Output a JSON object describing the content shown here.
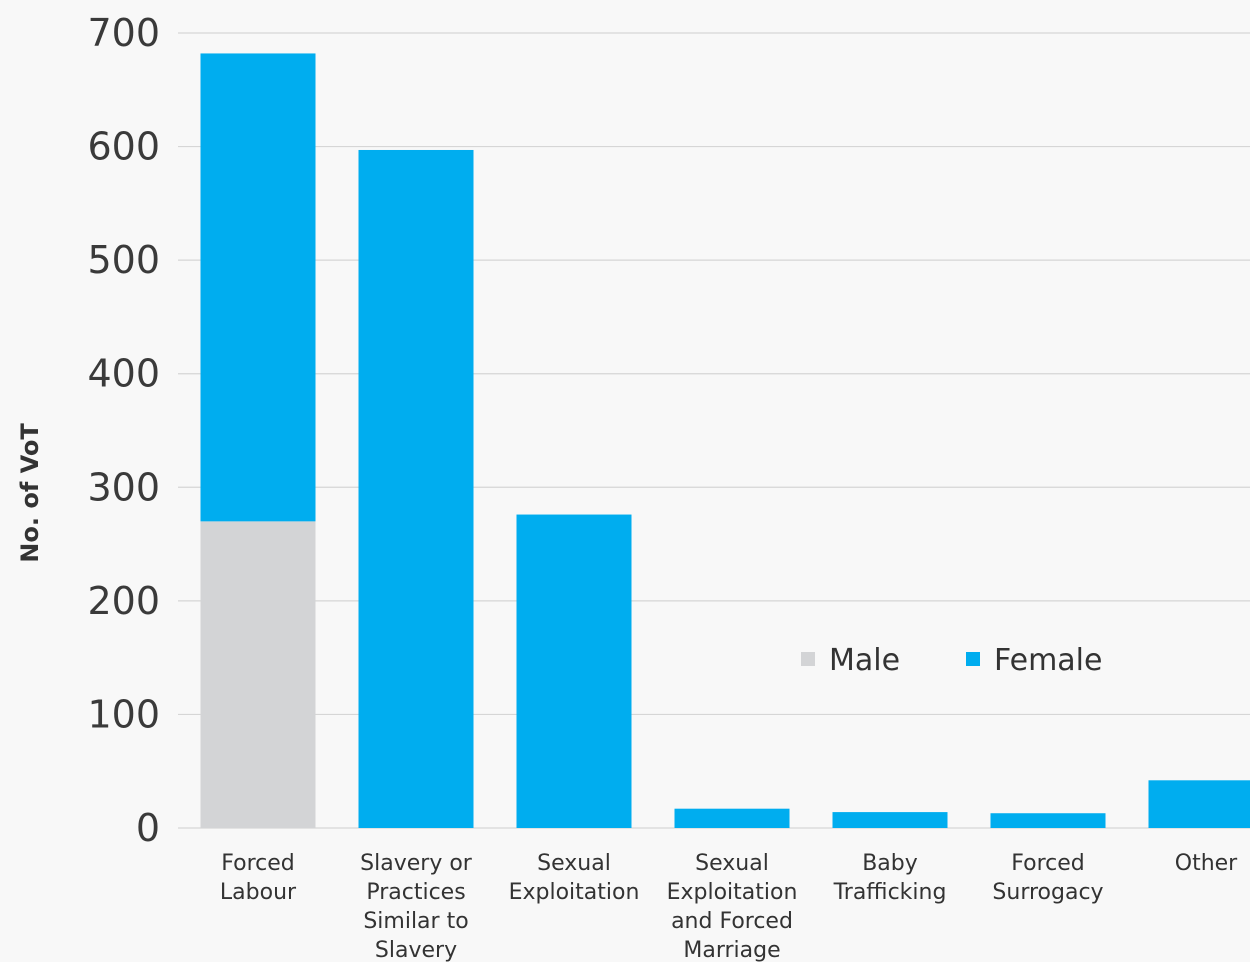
{
  "chart_data": {
    "type": "bar",
    "stacked": true,
    "title": "",
    "xlabel": "",
    "ylabel": "No. of VoT",
    "ylim": [
      0,
      700
    ],
    "yticks": [
      0,
      100,
      200,
      300,
      400,
      500,
      600,
      700
    ],
    "grid": true,
    "legend_position": "center-right",
    "categories": [
      [
        "Forced",
        "Labour"
      ],
      [
        "Slavery or",
        "Practices",
        "Similar to",
        "Slavery"
      ],
      [
        "Sexual",
        "Exploitation"
      ],
      [
        "Sexual",
        "Exploitation",
        "and Forced",
        "Marriage"
      ],
      [
        "Baby",
        "Trafficking"
      ],
      [
        "Forced",
        "Surrogacy"
      ],
      [
        "Other"
      ]
    ],
    "series": [
      {
        "name": "Male",
        "color": "#d3d4d6",
        "values": [
          270,
          0,
          0,
          0,
          0,
          0,
          0
        ]
      },
      {
        "name": "Female",
        "color": "#00adef",
        "values": [
          412,
          597,
          276,
          17,
          14,
          13,
          42
        ]
      }
    ]
  }
}
